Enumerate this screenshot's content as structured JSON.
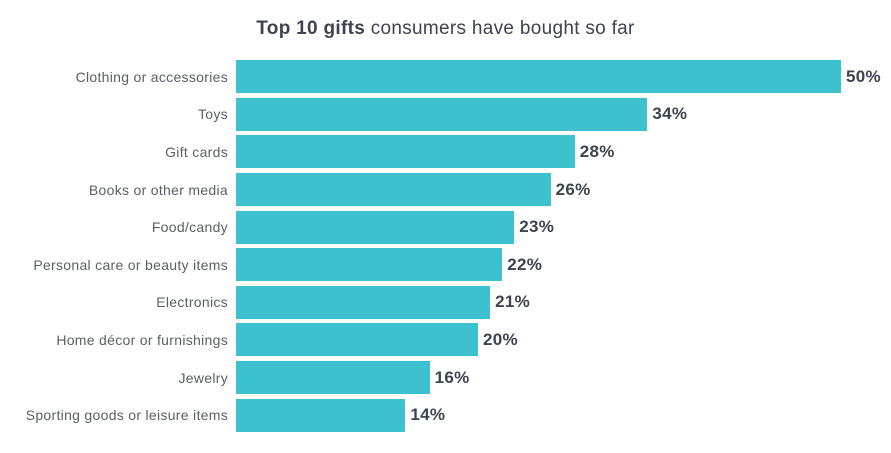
{
  "page": {
    "background_color": "#ffffff"
  },
  "header": {
    "title_bold": "Top 10 gifts",
    "title_regular": " consumers have bought so far",
    "title_color": "#3d4350"
  },
  "chart_data": {
    "type": "bar",
    "orientation": "horizontal",
    "title": "Top 10 gifts consumers have bought so far",
    "categories": [
      "Clothing or accessories",
      "Toys",
      "Gift cards",
      "Books or other media",
      "Food/candy",
      "Personal care or beauty items",
      "Electronics",
      "Home décor or furnishings",
      "Jewelry",
      "Sporting goods or leisure items"
    ],
    "values": [
      50,
      34,
      28,
      26,
      23,
      22,
      21,
      20,
      16,
      14
    ],
    "value_suffix": "%",
    "xlabel": "",
    "ylabel": "",
    "xlim": [
      0,
      54
    ],
    "grid": false,
    "legend": false,
    "bar_color": "#3ec1cf",
    "category_label_color": "#5b6067",
    "value_label_color": "#3d4350"
  }
}
